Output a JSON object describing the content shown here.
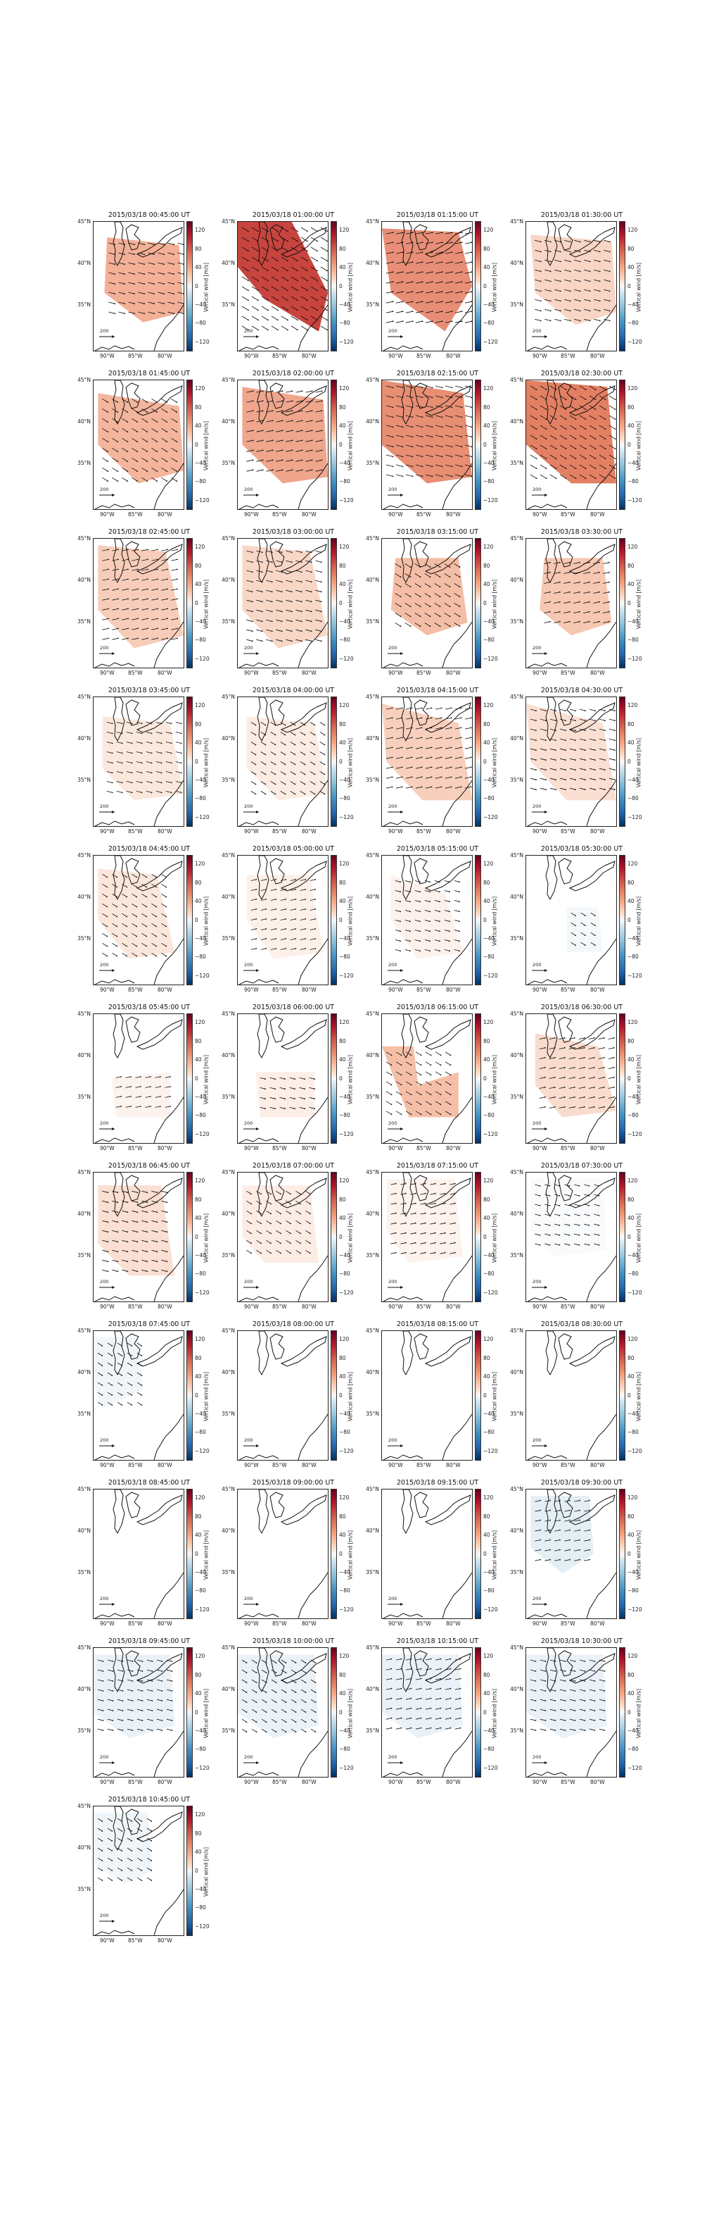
{
  "figure": {
    "panels": [
      {
        "title": "2015/03/18 00:45:00 UT",
        "fill": "#ef9a7a",
        "intensity": 0.5,
        "region": [
          [
            0.15,
            0.12
          ],
          [
            0.95,
            0.18
          ],
          [
            1.0,
            0.7
          ],
          [
            0.55,
            0.78
          ],
          [
            0.12,
            0.55
          ]
        ]
      },
      {
        "title": "2015/03/18 01:00:00 UT",
        "fill": "#c4362f",
        "intensity": 0.85,
        "region": [
          [
            0.0,
            0.0
          ],
          [
            0.6,
            0.0
          ],
          [
            1.0,
            0.55
          ],
          [
            0.9,
            0.85
          ],
          [
            0.3,
            0.6
          ],
          [
            0.0,
            0.35
          ]
        ]
      },
      {
        "title": "2015/03/18 01:15:00 UT",
        "fill": "#e57c5f",
        "intensity": 0.7,
        "region": [
          [
            0.0,
            0.05
          ],
          [
            0.85,
            0.08
          ],
          [
            1.0,
            0.5
          ],
          [
            0.7,
            0.85
          ],
          [
            0.1,
            0.55
          ]
        ]
      },
      {
        "title": "2015/03/18 01:30:00 UT",
        "fill": "#f6c6b0",
        "intensity": 0.4,
        "region": [
          [
            0.05,
            0.1
          ],
          [
            0.95,
            0.15
          ],
          [
            1.0,
            0.7
          ],
          [
            0.55,
            0.8
          ],
          [
            0.1,
            0.55
          ]
        ]
      },
      {
        "title": "2015/03/18 01:45:00 UT",
        "fill": "#f0a283",
        "intensity": 0.55,
        "region": [
          [
            0.05,
            0.1
          ],
          [
            0.95,
            0.2
          ],
          [
            1.0,
            0.7
          ],
          [
            0.5,
            0.8
          ],
          [
            0.05,
            0.5
          ]
        ]
      },
      {
        "title": "2015/03/18 02:00:00 UT",
        "fill": "#eb9274",
        "intensity": 0.6,
        "region": [
          [
            0.05,
            0.05
          ],
          [
            0.95,
            0.15
          ],
          [
            1.0,
            0.75
          ],
          [
            0.5,
            0.8
          ],
          [
            0.05,
            0.5
          ]
        ]
      },
      {
        "title": "2015/03/18 02:15:00 UT",
        "fill": "#e37b5c",
        "intensity": 0.7,
        "region": [
          [
            0.0,
            0.0
          ],
          [
            0.9,
            0.1
          ],
          [
            1.0,
            0.75
          ],
          [
            0.5,
            0.8
          ],
          [
            0.0,
            0.5
          ]
        ]
      },
      {
        "title": "2015/03/18 02:30:00 UT",
        "fill": "#e07050",
        "intensity": 0.75,
        "region": [
          [
            0.0,
            0.0
          ],
          [
            0.9,
            0.05
          ],
          [
            1.0,
            0.8
          ],
          [
            0.5,
            0.8
          ],
          [
            0.0,
            0.5
          ]
        ]
      },
      {
        "title": "2015/03/18 02:45:00 UT",
        "fill": "#f4bca2",
        "intensity": 0.45,
        "region": [
          [
            0.05,
            0.05
          ],
          [
            0.8,
            0.1
          ],
          [
            1.0,
            0.75
          ],
          [
            0.45,
            0.85
          ],
          [
            0.05,
            0.55
          ]
        ]
      },
      {
        "title": "2015/03/18 03:00:00 UT",
        "fill": "#f6c8b2",
        "intensity": 0.4,
        "region": [
          [
            0.05,
            0.05
          ],
          [
            0.8,
            0.1
          ],
          [
            1.0,
            0.75
          ],
          [
            0.45,
            0.85
          ],
          [
            0.05,
            0.55
          ]
        ]
      },
      {
        "title": "2015/03/18 03:15:00 UT",
        "fill": "#f1aa8c",
        "intensity": 0.5,
        "region": [
          [
            0.15,
            0.15
          ],
          [
            0.85,
            0.15
          ],
          [
            0.95,
            0.65
          ],
          [
            0.5,
            0.75
          ],
          [
            0.1,
            0.55
          ]
        ]
      },
      {
        "title": "2015/03/18 03:30:00 UT",
        "fill": "#f3b497",
        "intensity": 0.45,
        "region": [
          [
            0.2,
            0.15
          ],
          [
            0.85,
            0.15
          ],
          [
            0.95,
            0.65
          ],
          [
            0.5,
            0.75
          ],
          [
            0.15,
            0.55
          ]
        ]
      },
      {
        "title": "2015/03/18 03:45:00 UT",
        "fill": "#f9dccc",
        "intensity": 0.25,
        "region": [
          [
            0.1,
            0.15
          ],
          [
            0.85,
            0.2
          ],
          [
            1.0,
            0.75
          ],
          [
            0.45,
            0.8
          ],
          [
            0.1,
            0.55
          ]
        ]
      },
      {
        "title": "2015/03/18 04:00:00 UT",
        "fill": "#fae1d3",
        "intensity": 0.2,
        "region": [
          [
            0.1,
            0.15
          ],
          [
            0.85,
            0.2
          ],
          [
            1.0,
            0.75
          ],
          [
            0.45,
            0.8
          ],
          [
            0.1,
            0.55
          ]
        ]
      },
      {
        "title": "2015/03/18 04:15:00 UT",
        "fill": "#f5bfa5",
        "intensity": 0.45,
        "region": [
          [
            0.0,
            0.05
          ],
          [
            0.85,
            0.2
          ],
          [
            1.0,
            0.8
          ],
          [
            0.45,
            0.8
          ],
          [
            0.05,
            0.5
          ]
        ]
      },
      {
        "title": "2015/03/18 04:30:00 UT",
        "fill": "#f8d2bf",
        "intensity": 0.3,
        "region": [
          [
            0.0,
            0.05
          ],
          [
            0.85,
            0.2
          ],
          [
            1.0,
            0.8
          ],
          [
            0.45,
            0.8
          ],
          [
            0.05,
            0.5
          ]
        ]
      },
      {
        "title": "2015/03/18 04:45:00 UT",
        "fill": "#f9d9c8",
        "intensity": 0.25,
        "region": [
          [
            0.05,
            0.1
          ],
          [
            0.7,
            0.15
          ],
          [
            0.9,
            0.75
          ],
          [
            0.4,
            0.8
          ],
          [
            0.05,
            0.5
          ]
        ]
      },
      {
        "title": "2015/03/18 05:00:00 UT",
        "fill": "#fbe6da",
        "intensity": 0.15,
        "region": [
          [
            0.1,
            0.15
          ],
          [
            0.8,
            0.15
          ],
          [
            0.95,
            0.75
          ],
          [
            0.4,
            0.8
          ],
          [
            0.1,
            0.5
          ]
        ]
      },
      {
        "title": "2015/03/18 05:15:00 UT",
        "fill": "#fbe8de",
        "intensity": 0.12,
        "region": [
          [
            0.1,
            0.15
          ],
          [
            0.7,
            0.3
          ],
          [
            0.9,
            0.75
          ],
          [
            0.4,
            0.8
          ],
          [
            0.1,
            0.5
          ]
        ]
      },
      {
        "title": "2015/03/18 05:30:00 UT",
        "fill": "#edf3f7",
        "intensity": 0.1,
        "region": [
          [
            0.45,
            0.4
          ],
          [
            0.8,
            0.4
          ],
          [
            0.85,
            0.75
          ],
          [
            0.45,
            0.75
          ]
        ]
      },
      {
        "title": "2015/03/18 05:45:00 UT",
        "fill": "#fcebe2",
        "intensity": 0.1,
        "region": [
          [
            0.2,
            0.5
          ],
          [
            0.85,
            0.45
          ],
          [
            0.85,
            0.8
          ],
          [
            0.25,
            0.8
          ]
        ]
      },
      {
        "title": "2015/03/18 06:00:00 UT",
        "fill": "#fbe3d6",
        "intensity": 0.15,
        "region": [
          [
            0.2,
            0.45
          ],
          [
            0.85,
            0.45
          ],
          [
            0.85,
            0.8
          ],
          [
            0.25,
            0.8
          ]
        ]
      },
      {
        "title": "2015/03/18 06:15:00 UT",
        "fill": "#f2a98a",
        "intensity": 0.45,
        "region": [
          [
            0.0,
            0.25
          ],
          [
            0.35,
            0.25
          ],
          [
            0.4,
            0.55
          ],
          [
            0.85,
            0.45
          ],
          [
            0.85,
            0.8
          ],
          [
            0.3,
            0.8
          ]
        ]
      },
      {
        "title": "2015/03/18 06:30:00 UT",
        "fill": "#f7cdb8",
        "intensity": 0.3,
        "region": [
          [
            0.1,
            0.15
          ],
          [
            0.8,
            0.25
          ],
          [
            1.0,
            0.75
          ],
          [
            0.4,
            0.8
          ],
          [
            0.1,
            0.55
          ]
        ]
      },
      {
        "title": "2015/03/18 06:45:00 UT",
        "fill": "#f8d1be",
        "intensity": 0.3,
        "region": [
          [
            0.05,
            0.1
          ],
          [
            0.75,
            0.1
          ],
          [
            0.9,
            0.8
          ],
          [
            0.4,
            0.8
          ],
          [
            0.05,
            0.55
          ]
        ]
      },
      {
        "title": "2015/03/18 07:00:00 UT",
        "fill": "#fae2d5",
        "intensity": 0.2,
        "region": [
          [
            0.05,
            0.1
          ],
          [
            0.8,
            0.1
          ],
          [
            0.9,
            0.7
          ],
          [
            0.3,
            0.7
          ],
          [
            0.05,
            0.5
          ]
        ]
      },
      {
        "title": "2015/03/18 07:15:00 UT",
        "fill": "#fbe9df",
        "intensity": 0.1,
        "region": [
          [
            0.05,
            0.05
          ],
          [
            0.8,
            0.05
          ],
          [
            0.9,
            0.65
          ],
          [
            0.3,
            0.7
          ],
          [
            0.05,
            0.45
          ]
        ]
      },
      {
        "title": "2015/03/18 07:30:00 UT",
        "fill": "#f2f6f9",
        "intensity": 0.05,
        "region": [
          [
            0.05,
            0.05
          ],
          [
            0.85,
            0.05
          ],
          [
            0.9,
            0.6
          ],
          [
            0.3,
            0.65
          ],
          [
            0.05,
            0.45
          ]
        ]
      },
      {
        "title": "2015/03/18 07:45:00 UT",
        "fill": "#e6eef5",
        "intensity": 0.1,
        "region": [
          [
            0.0,
            0.05
          ],
          [
            0.5,
            0.05
          ],
          [
            0.55,
            0.45
          ],
          [
            0.1,
            0.6
          ],
          [
            0.0,
            0.4
          ]
        ]
      },
      {
        "title": "2015/03/18 08:00:00 UT",
        "fill": "",
        "intensity": 0,
        "region": []
      },
      {
        "title": "2015/03/18 08:15:00 UT",
        "fill": "",
        "intensity": 0,
        "region": []
      },
      {
        "title": "2015/03/18 08:30:00 UT",
        "fill": "",
        "intensity": 0,
        "region": []
      },
      {
        "title": "2015/03/18 08:45:00 UT",
        "fill": "",
        "intensity": 0,
        "region": []
      },
      {
        "title": "2015/03/18 09:00:00 UT",
        "fill": "",
        "intensity": 0,
        "region": []
      },
      {
        "title": "2015/03/18 09:15:00 UT",
        "fill": "",
        "intensity": 0,
        "region": []
      },
      {
        "title": "2015/03/18 09:30:00 UT",
        "fill": "#d5e5f0",
        "intensity": 0.2,
        "region": [
          [
            0.05,
            0.05
          ],
          [
            0.7,
            0.05
          ],
          [
            0.75,
            0.5
          ],
          [
            0.4,
            0.65
          ],
          [
            0.05,
            0.45
          ]
        ]
      },
      {
        "title": "2015/03/18 09:45:00 UT",
        "fill": "#dde9f2",
        "intensity": 0.15,
        "region": [
          [
            0.0,
            0.05
          ],
          [
            0.85,
            0.05
          ],
          [
            0.9,
            0.6
          ],
          [
            0.4,
            0.7
          ],
          [
            0.0,
            0.5
          ]
        ]
      },
      {
        "title": "2015/03/18 10:00:00 UT",
        "fill": "#dde9f2",
        "intensity": 0.15,
        "region": [
          [
            0.0,
            0.05
          ],
          [
            0.85,
            0.05
          ],
          [
            0.9,
            0.6
          ],
          [
            0.4,
            0.7
          ],
          [
            0.0,
            0.5
          ]
        ]
      },
      {
        "title": "2015/03/18 10:15:00 UT",
        "fill": "#dde9f2",
        "intensity": 0.15,
        "region": [
          [
            0.0,
            0.05
          ],
          [
            0.85,
            0.05
          ],
          [
            0.9,
            0.6
          ],
          [
            0.4,
            0.7
          ],
          [
            0.0,
            0.5
          ]
        ]
      },
      {
        "title": "2015/03/18 10:30:00 UT",
        "fill": "#dde9f2",
        "intensity": 0.15,
        "region": [
          [
            0.0,
            0.05
          ],
          [
            0.85,
            0.05
          ],
          [
            0.9,
            0.6
          ],
          [
            0.4,
            0.7
          ],
          [
            0.0,
            0.5
          ]
        ]
      },
      {
        "title": "2015/03/18 10:45:00 UT",
        "fill": "#e6eef5",
        "intensity": 0.1,
        "region": [
          [
            0.0,
            0.05
          ],
          [
            0.6,
            0.05
          ],
          [
            0.65,
            0.5
          ],
          [
            0.35,
            0.6
          ],
          [
            0.0,
            0.45
          ]
        ]
      }
    ],
    "colorbar": {
      "label": "Vertical wind [m/s]",
      "ticks": [
        "120",
        "80",
        "40",
        "0",
        "−40",
        "−80",
        "−120"
      ],
      "tick_values": [
        120,
        80,
        40,
        0,
        -40,
        -80,
        -120
      ],
      "range": [
        -140,
        140
      ]
    },
    "lat_ticks": [
      "45°N",
      "40°N",
      "35°N"
    ],
    "lon_ticks": [
      "90°W",
      "85°W",
      "80°W"
    ],
    "reference_vector_label": "200"
  }
}
